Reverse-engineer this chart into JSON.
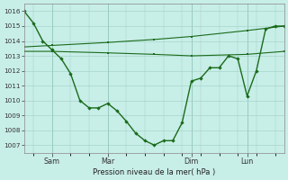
{
  "background_color": "#c8eee8",
  "grid_color": "#9ecfc4",
  "line_color": "#1a6b1a",
  "x_tick_labels": [
    "Sam",
    "Mar",
    "Dim",
    "Lun"
  ],
  "ylabel": "Pression niveau de la mer( hPa )",
  "ylim": [
    1006.5,
    1016.5
  ],
  "yticks": [
    1007,
    1008,
    1009,
    1010,
    1011,
    1012,
    1013,
    1014,
    1015,
    1016
  ],
  "xlim": [
    0,
    28
  ],
  "x_tick_pos": [
    3,
    9,
    18,
    24
  ],
  "series1_x": [
    0,
    1,
    2,
    3,
    4,
    5,
    6,
    7,
    8,
    9,
    10,
    11,
    12,
    13,
    14,
    15,
    16,
    17,
    18,
    19,
    20,
    21,
    22,
    23,
    24,
    25,
    26,
    27,
    28
  ],
  "series1_y": [
    1016.0,
    1015.2,
    1014.0,
    1013.4,
    1012.8,
    1011.8,
    1010.0,
    1009.5,
    1009.5,
    1009.8,
    1009.3,
    1008.6,
    1007.8,
    1007.3,
    1007.0,
    1007.3,
    1007.3,
    1008.5,
    1011.3,
    1011.5,
    1012.2,
    1012.2,
    1013.0,
    1012.8,
    1010.3,
    1012.0,
    1014.8,
    1015.0,
    1015.0
  ],
  "series2_x": [
    0,
    3,
    9,
    14,
    18,
    24,
    28
  ],
  "series2_y": [
    1013.3,
    1013.3,
    1013.2,
    1013.1,
    1013.0,
    1013.1,
    1013.3
  ],
  "series3_x": [
    0,
    3,
    9,
    14,
    18,
    24,
    28
  ],
  "series3_y": [
    1013.6,
    1013.7,
    1013.9,
    1014.1,
    1014.3,
    1014.7,
    1015.0
  ]
}
